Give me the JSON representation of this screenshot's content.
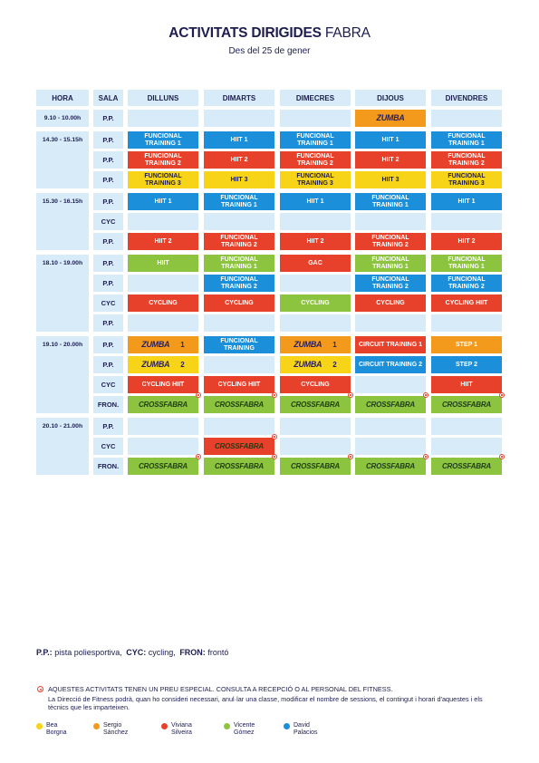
{
  "header": {
    "title": "ACTIVITATS DIRIGIDES",
    "title_suffix": "FABRA",
    "subtitle": "Des del 25 de gener"
  },
  "table": {
    "columns": [
      "HORA",
      "SALA",
      "DILLUNS",
      "DIMARTS",
      "DIMECRES",
      "DIJOUS",
      "DIVENDRES"
    ],
    "groups": [
      {
        "hora": "9.10 - 10.00h",
        "rows": [
          {
            "sala": "P.P.",
            "cells": [
              null,
              null,
              null,
              {
                "logo": "ZUMBA",
                "color": "#f39a1d"
              },
              null
            ]
          }
        ]
      },
      {
        "hora": "14.30 - 15.15h",
        "rows": [
          {
            "sala": "P.P.",
            "cells": [
              {
                "text": "FUNCIONAL TRAINING 1",
                "color": "#1b8fd9"
              },
              {
                "text": "HIIT 1",
                "color": "#1b8fd9"
              },
              {
                "text": "FUNCIONAL TRAINING 1",
                "color": "#1b8fd9"
              },
              {
                "text": "HIIT 1",
                "color": "#1b8fd9"
              },
              {
                "text": "FUNCIONAL TRAINING 1",
                "color": "#1b8fd9"
              }
            ]
          },
          {
            "sala": "P.P.",
            "cells": [
              {
                "text": "FUNCIONAL TRAINING 2",
                "color": "#e8412b"
              },
              {
                "text": "HIIT 2",
                "color": "#e8412b"
              },
              {
                "text": "FUNCIONAL TRAINING 2",
                "color": "#e8412b"
              },
              {
                "text": "HIIT 2",
                "color": "#e8412b"
              },
              {
                "text": "FUNCIONAL TRAINING 2",
                "color": "#e8412b"
              }
            ]
          },
          {
            "sala": "P.P.",
            "cells": [
              {
                "text": "FUNCIONAL TRAINING 3",
                "color": "#f7d417"
              },
              {
                "text": "HIIT 3",
                "color": "#f7d417"
              },
              {
                "text": "FUNCIONAL TRAINING 3",
                "color": "#f7d417"
              },
              {
                "text": "HIIT 3",
                "color": "#f7d417"
              },
              {
                "text": "FUNCIONAL TRAINING 3",
                "color": "#f7d417"
              }
            ]
          }
        ]
      },
      {
        "hora": "15.30 - 16.15h",
        "rows": [
          {
            "sala": "P.P.",
            "cells": [
              {
                "text": "HIIT 1",
                "color": "#1b8fd9"
              },
              {
                "text": "FUNCIONAL TRAINING 1",
                "color": "#1b8fd9"
              },
              {
                "text": "HIIT 1",
                "color": "#1b8fd9"
              },
              {
                "text": "FUNCIONAL TRAINING 1",
                "color": "#1b8fd9"
              },
              {
                "text": "HIIT 1",
                "color": "#1b8fd9"
              }
            ]
          },
          {
            "sala": "CYC",
            "cells": [
              null,
              null,
              null,
              null,
              null
            ]
          },
          {
            "sala": "P.P.",
            "cells": [
              {
                "text": "HIIT 2",
                "color": "#e8412b"
              },
              {
                "text": "FUNCIONAL TRAINING 2",
                "color": "#e8412b"
              },
              {
                "text": "HIIT 2",
                "color": "#e8412b"
              },
              {
                "text": "FUNCIONAL TRAINING 2",
                "color": "#e8412b"
              },
              {
                "text": "HIIT 2",
                "color": "#e8412b"
              }
            ]
          }
        ]
      },
      {
        "hora": "18.10 - 19.00h",
        "rows": [
          {
            "sala": "P.P.",
            "cells": [
              {
                "text": "HIIT",
                "color": "#8cc43f"
              },
              {
                "text": "FUNCIONAL TRAINING 1",
                "color": "#8cc43f"
              },
              {
                "text": "GAC",
                "color": "#e8412b"
              },
              {
                "text": "FUNCIONAL TRAINING 1",
                "color": "#8cc43f"
              },
              {
                "text": "FUNCIONAL TRAINING 1",
                "color": "#8cc43f"
              }
            ]
          },
          {
            "sala": "P.P.",
            "cells": [
              null,
              {
                "text": "FUNCIONAL TRAINING 2",
                "color": "#1b8fd9"
              },
              null,
              {
                "text": "FUNCIONAL TRAINING 2",
                "color": "#1b8fd9"
              },
              {
                "text": "FUNCIONAL TRAINING 2",
                "color": "#1b8fd9"
              }
            ]
          },
          {
            "sala": "CYC",
            "cells": [
              {
                "text": "CYCLING",
                "color": "#e8412b"
              },
              {
                "text": "CYCLING",
                "color": "#e8412b"
              },
              {
                "text": "CYCLING",
                "color": "#8cc43f"
              },
              {
                "text": "CYCLING",
                "color": "#e8412b"
              },
              {
                "text": "CYCLING HIIT",
                "color": "#e8412b"
              }
            ]
          },
          {
            "sala": "P.P.",
            "cells": [
              null,
              null,
              null,
              null,
              null
            ]
          }
        ]
      },
      {
        "hora": "19.10 - 20.00h",
        "rows": [
          {
            "sala": "P.P.",
            "cells": [
              {
                "logo": "ZUMBA",
                "number": 1,
                "color": "#f39a1d"
              },
              {
                "text": "FUNCIONAL TRAINING",
                "color": "#1b8fd9"
              },
              {
                "logo": "ZUMBA",
                "number": 1,
                "color": "#f39a1d"
              },
              {
                "text": "CIRCUIT TRAINING 1",
                "color": "#e8412b"
              },
              {
                "text": "STEP 1",
                "color": "#f39a1d"
              }
            ]
          },
          {
            "sala": "P.P.",
            "cells": [
              {
                "logo": "ZUMBA",
                "number": 2,
                "color": "#f7d417"
              },
              null,
              {
                "logo": "ZUMBA",
                "number": 2,
                "color": "#f7d417"
              },
              {
                "text": "CIRCUIT TRAINING 2",
                "color": "#1b8fd9"
              },
              {
                "text": "STEP 2",
                "color": "#1b8fd9"
              }
            ]
          },
          {
            "sala": "CYC",
            "cells": [
              {
                "text": "CYCLING HIIT",
                "color": "#e8412b"
              },
              {
                "text": "CYCLING HIIT",
                "color": "#e8412b"
              },
              {
                "text": "CYCLING",
                "color": "#e8412b"
              },
              null,
              {
                "text": "HIIT",
                "color": "#e8412b"
              }
            ]
          },
          {
            "sala": "FRON.",
            "cells": [
              {
                "logo": "CROSSFABRA",
                "color": "#8cc43f",
                "special": true
              },
              {
                "logo": "CROSSFABRA",
                "color": "#8cc43f",
                "special": true
              },
              {
                "logo": "CROSSFABRA",
                "color": "#8cc43f",
                "special": true
              },
              {
                "logo": "CROSSFABRA",
                "color": "#8cc43f",
                "special": true
              },
              {
                "logo": "CROSSFABRA",
                "color": "#8cc43f",
                "special": true
              }
            ]
          }
        ]
      },
      {
        "hora": "20.10 - 21.00h",
        "rows": [
          {
            "sala": "P.P.",
            "cells": [
              null,
              null,
              null,
              null,
              null
            ]
          },
          {
            "sala": "CYC",
            "cells": [
              null,
              {
                "logo": "CROSSFABRA",
                "color": "#e8412b",
                "special": true
              },
              null,
              null,
              null
            ]
          },
          {
            "sala": "FRON.",
            "cells": [
              {
                "logo": "CROSSFABRA",
                "color": "#8cc43f",
                "special": true
              },
              {
                "logo": "CROSSFABRA",
                "color": "#8cc43f",
                "special": true
              },
              {
                "logo": "CROSSFABRA",
                "color": "#8cc43f",
                "special": true
              },
              {
                "logo": "CROSSFABRA",
                "color": "#8cc43f",
                "special": true
              },
              {
                "logo": "CROSSFABRA",
                "color": "#8cc43f",
                "special": true
              }
            ]
          }
        ]
      }
    ]
  },
  "abbreviations": [
    {
      "abbr": "P.P.:",
      "meaning": "pista poliesportiva,"
    },
    {
      "abbr": "CYC:",
      "meaning": "cycling,"
    },
    {
      "abbr": "FRON:",
      "meaning": "frontó"
    }
  ],
  "note": {
    "title": "AQUESTES ACTIVITATS TENEN UN PREU ESPECIAL. CONSULTA A RECEPCIÓ O AL PERSONAL DEL FITNESS.",
    "text": "La Direcció de Fitness podrà, quan ho consideri necessari, anul·lar una classe, modificar el nombre de sessions, el contingut i horari d'aquestes i els tècnics que les imparteixen."
  },
  "instructors": [
    {
      "first": "Bea",
      "last": "Borgna",
      "color": "#f7d417"
    },
    {
      "first": "Sergio",
      "last": "Sánchez",
      "color": "#f39a1d"
    },
    {
      "first": "Viviana",
      "last": "Silveira",
      "color": "#e8412b"
    },
    {
      "first": "Vicente",
      "last": "Gómez",
      "color": "#8cc43f"
    },
    {
      "first": "David",
      "last": "Palacios",
      "color": "#1b8fd9"
    }
  ]
}
